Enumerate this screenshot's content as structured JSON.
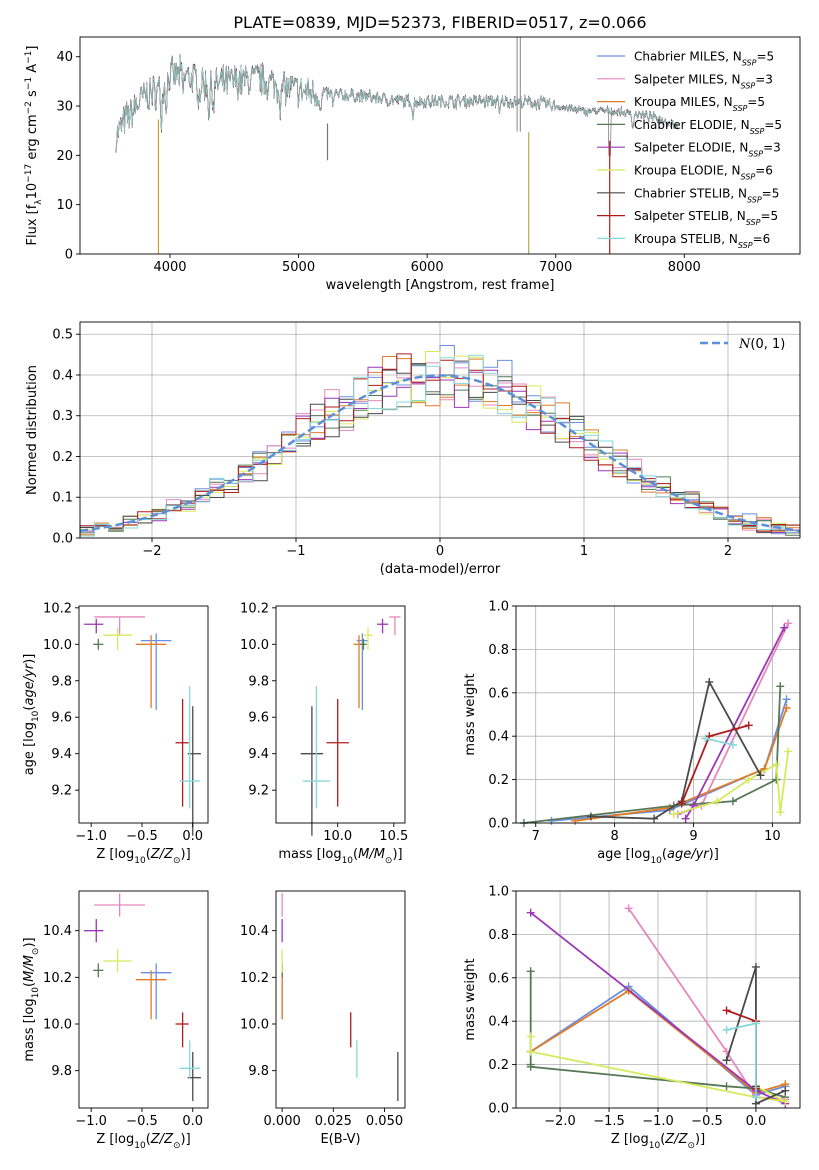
{
  "figure": {
    "title": "PLATE=0839, MJD=52373, FIBERID=0517, z=0.066"
  },
  "colors": {
    "Chabrier MILES": "#6a8fe0",
    "Salpeter MILES": "#e589bd",
    "Kroupa MILES": "#e07c28",
    "Chabrier ELODIE": "#567856",
    "Salpeter ELODIE": "#9c37b6",
    "Kroupa ELODIE": "#d6ea5e",
    "Chabrier STELIB": "#4a4a4a",
    "Salpeter STELIB": "#b01c1c",
    "Kroupa STELIB": "#86d8da",
    "gauss": "#5b8fd8",
    "grid": "#b0b0b0"
  },
  "chart_data": [
    {
      "id": "spectrum",
      "type": "line",
      "xlabel": "wavelength [Angstrom, rest frame]",
      "ylabel": "Flux [f_λ 10^-17 erg cm^-2 s^-1 A^-1]",
      "xlim": [
        3300,
        8900
      ],
      "ylim": [
        0,
        44
      ],
      "xticks": [
        4000,
        5000,
        6000,
        7000,
        8000
      ],
      "yticks": [
        0,
        10,
        20,
        30,
        40
      ],
      "grid": false,
      "legend_position": "right",
      "legend": [
        {
          "name": "Chabrier MILES",
          "label": "Chabrier MILES, N",
          "n": "5"
        },
        {
          "name": "Salpeter MILES",
          "label": "Salpeter MILES, N",
          "n": "3"
        },
        {
          "name": "Kroupa MILES",
          "label": "Kroupa MILES, N",
          "n": "5"
        },
        {
          "name": "Chabrier ELODIE",
          "label": "Chabrier ELODIE, N",
          "n": "5"
        },
        {
          "name": "Salpeter ELODIE",
          "label": "Salpeter ELODIE, N",
          "n": "3"
        },
        {
          "name": "Kroupa ELODIE",
          "label": "Kroupa ELODIE, N",
          "n": "6"
        },
        {
          "name": "Chabrier STELIB",
          "label": "Chabrier STELIB, N",
          "n": "5"
        },
        {
          "name": "Salpeter STELIB",
          "label": "Salpeter STELIB, N",
          "n": "5"
        },
        {
          "name": "Kroupa STELIB",
          "label": "Kroupa STELIB, N",
          "n": "6"
        }
      ],
      "nsub": "SSP",
      "continuum": {
        "x": [
          3580,
          3650,
          3800,
          3900,
          4000,
          4100,
          4300,
          4500,
          4700,
          4850,
          5000,
          5200,
          5500,
          5800,
          6100,
          6400,
          6600,
          6900,
          7200,
          7400,
          7600,
          7800,
          7950
        ],
        "y": [
          24,
          27,
          32,
          33,
          36,
          36.5,
          34,
          35,
          35.5,
          34,
          33,
          32.5,
          32,
          31,
          31,
          31,
          31,
          30.5,
          29,
          29,
          28.5,
          27.5,
          26
        ]
      },
      "spikes": [
        {
          "x": 3910,
          "y": 0
        },
        {
          "x": 5225,
          "y": 19
        },
        {
          "x": 6790,
          "y": 0
        },
        {
          "x": 7420,
          "y": 0
        },
        {
          "x": 6700,
          "y": 44
        },
        {
          "x": 6725,
          "y": 44
        }
      ]
    },
    {
      "id": "residuals",
      "type": "histogram",
      "xlabel": "(data-model)/error",
      "ylabel": "Normed distribution",
      "xlim": [
        -2.5,
        2.5
      ],
      "ylim": [
        0,
        0.53
      ],
      "xticks": [
        -2,
        -1,
        0,
        1,
        2
      ],
      "yticks": [
        0.0,
        0.1,
        0.2,
        0.3,
        0.4,
        0.5
      ],
      "grid": true,
      "legend_position": "top-right",
      "legend_label": "N(0,1)",
      "bin_width": 0.1
    },
    {
      "id": "age-vs-Z",
      "type": "errorbar",
      "xlabel": "Z [log10(Z/Z_sun)]",
      "ylabel": "age [log10(age/yr)]",
      "xlim": [
        -1.12,
        0.15
      ],
      "ylim": [
        9.02,
        10.21
      ],
      "xticks": [
        -1.0,
        -0.5,
        0.0
      ],
      "yticks": [
        9.2,
        9.4,
        9.6,
        9.8,
        10.0,
        10.2
      ],
      "points": [
        {
          "model": "Chabrier MILES",
          "x": -0.36,
          "xerr": [
            0.15,
            0.15
          ],
          "y": 10.02,
          "yerr": [
            0.38,
            0.04
          ]
        },
        {
          "model": "Salpeter MILES",
          "x": -0.72,
          "xerr": [
            0.25,
            0.25
          ],
          "y": 10.15,
          "yerr": [
            0.1,
            0.0
          ]
        },
        {
          "model": "Kroupa MILES",
          "x": -0.41,
          "xerr": [
            0.15,
            0.15
          ],
          "y": 10.0,
          "yerr": [
            0.35,
            0.05
          ]
        },
        {
          "model": "Chabrier ELODIE",
          "x": -0.93,
          "xerr": [
            0.05,
            0.05
          ],
          "y": 10.0,
          "yerr": [
            0.03,
            0.03
          ]
        },
        {
          "model": "Salpeter ELODIE",
          "x": -0.95,
          "xerr": [
            0.12,
            0.07
          ],
          "y": 10.11,
          "yerr": [
            0.05,
            0.03
          ]
        },
        {
          "model": "Kroupa ELODIE",
          "x": -0.74,
          "xerr": [
            0.14,
            0.14
          ],
          "y": 10.05,
          "yerr": [
            0.08,
            0.04
          ]
        },
        {
          "model": "Chabrier STELIB",
          "x": 0.0,
          "xerr": [
            0.05,
            0.08
          ],
          "y": 9.4,
          "yerr": [
            0.45,
            0.26
          ]
        },
        {
          "model": "Salpeter STELIB",
          "x": -0.1,
          "xerr": [
            0.07,
            0.06
          ],
          "y": 9.46,
          "yerr": [
            0.35,
            0.24
          ]
        },
        {
          "model": "Kroupa STELIB",
          "x": -0.03,
          "xerr": [
            0.1,
            0.1
          ],
          "y": 9.25,
          "yerr": [
            0.15,
            0.52
          ]
        }
      ]
    },
    {
      "id": "age-vs-mass",
      "type": "errorbar",
      "xlabel": "mass [log10(M/M_sun)]",
      "ylabel": "",
      "xlim": [
        9.45,
        10.6
      ],
      "ylim": [
        9.02,
        10.21
      ],
      "xticks": [
        10.0,
        10.5
      ],
      "yticks": [
        9.2,
        9.4,
        9.6,
        9.8,
        10.0,
        10.2
      ],
      "points": [
        {
          "model": "Chabrier MILES",
          "x": 10.22,
          "xerr": [
            0.05,
            0.05
          ],
          "y": 10.02,
          "yerr": [
            0.38,
            0.04
          ]
        },
        {
          "model": "Salpeter MILES",
          "x": 10.51,
          "xerr": [
            0.05,
            0.05
          ],
          "y": 10.15,
          "yerr": [
            0.1,
            0.0
          ]
        },
        {
          "model": "Kroupa MILES",
          "x": 10.19,
          "xerr": [
            0.05,
            0.05
          ],
          "y": 10.0,
          "yerr": [
            0.35,
            0.05
          ]
        },
        {
          "model": "Chabrier ELODIE",
          "x": 10.23,
          "xerr": [
            0.03,
            0.03
          ],
          "y": 10.0,
          "yerr": [
            0.03,
            0.03
          ]
        },
        {
          "model": "Salpeter ELODIE",
          "x": 10.4,
          "xerr": [
            0.05,
            0.05
          ],
          "y": 10.11,
          "yerr": [
            0.05,
            0.03
          ]
        },
        {
          "model": "Kroupa ELODIE",
          "x": 10.27,
          "xerr": [
            0.04,
            0.04
          ],
          "y": 10.05,
          "yerr": [
            0.08,
            0.04
          ]
        },
        {
          "model": "Chabrier STELIB",
          "x": 9.77,
          "xerr": [
            0.1,
            0.1
          ],
          "y": 9.4,
          "yerr": [
            0.45,
            0.26
          ]
        },
        {
          "model": "Salpeter STELIB",
          "x": 10.0,
          "xerr": [
            0.1,
            0.1
          ],
          "y": 9.46,
          "yerr": [
            0.35,
            0.24
          ]
        },
        {
          "model": "Kroupa STELIB",
          "x": 9.81,
          "xerr": [
            0.12,
            0.12
          ],
          "y": 9.25,
          "yerr": [
            0.15,
            0.52
          ]
        }
      ]
    },
    {
      "id": "weight-vs-age",
      "type": "line",
      "xlabel": "age [log10(age/yr)]",
      "ylabel": "mass weight",
      "xlim": [
        6.75,
        10.35
      ],
      "ylim": [
        0,
        1.0
      ],
      "xticks": [
        7,
        8,
        9,
        10
      ],
      "yticks": [
        0.0,
        0.2,
        0.4,
        0.6,
        0.8,
        1.0
      ],
      "grid": true,
      "series": [
        {
          "model": "Chabrier MILES",
          "x": [
            7.2,
            8.7,
            9.9,
            10.18
          ],
          "y": [
            0.01,
            0.06,
            0.25,
            0.57
          ]
        },
        {
          "model": "Salpeter MILES",
          "x": [
            8.8,
            9.1,
            10.2
          ],
          "y": [
            0.04,
            0.08,
            0.92
          ]
        },
        {
          "model": "Kroupa MILES",
          "x": [
            7.5,
            8.7,
            9.9,
            10.18
          ],
          "y": [
            0.01,
            0.07,
            0.25,
            0.53
          ]
        },
        {
          "model": "Chabrier ELODIE",
          "x": [
            6.85,
            8.75,
            9.5,
            10.05,
            10.1
          ],
          "y": [
            0.0,
            0.08,
            0.1,
            0.2,
            0.63
          ]
        },
        {
          "model": "Salpeter ELODIE",
          "x": [
            8.9,
            9.0,
            10.15
          ],
          "y": [
            0.02,
            0.08,
            0.9
          ]
        },
        {
          "model": "Kroupa ELODIE",
          "x": [
            8.75,
            9.3,
            9.7,
            10.05,
            10.1,
            10.2
          ],
          "y": [
            0.04,
            0.1,
            0.2,
            0.27,
            0.05,
            0.33
          ]
        },
        {
          "model": "Chabrier STELIB",
          "x": [
            7.7,
            8.5,
            8.85,
            9.2,
            9.85
          ],
          "y": [
            0.03,
            0.02,
            0.1,
            0.65,
            0.22
          ]
        },
        {
          "model": "Salpeter STELIB",
          "x": [
            8.85,
            9.2,
            9.7
          ],
          "y": [
            0.09,
            0.4,
            0.45
          ]
        },
        {
          "model": "Kroupa STELIB",
          "x": [
            9.15,
            9.5
          ],
          "y": [
            0.39,
            0.36
          ]
        }
      ]
    },
    {
      "id": "mass-vs-Z",
      "type": "errorbar",
      "xlabel": "Z [log10(Z/Z_sun)]",
      "ylabel": "mass [log10(M/M_sun)]",
      "xlim": [
        -1.12,
        0.15
      ],
      "ylim": [
        9.64,
        10.57
      ],
      "xticks": [
        -1.0,
        -0.5,
        0.0
      ],
      "yticks": [
        9.8,
        10.0,
        10.2,
        10.4
      ],
      "points": [
        {
          "model": "Chabrier MILES",
          "x": -0.36,
          "xerr": [
            0.15,
            0.15
          ],
          "y": 10.22,
          "yerr": [
            0.2,
            0.04
          ]
        },
        {
          "model": "Salpeter MILES",
          "x": -0.72,
          "xerr": [
            0.25,
            0.25
          ],
          "y": 10.51,
          "yerr": [
            0.05,
            0.05
          ]
        },
        {
          "model": "Kroupa MILES",
          "x": -0.41,
          "xerr": [
            0.15,
            0.15
          ],
          "y": 10.19,
          "yerr": [
            0.17,
            0.04
          ]
        },
        {
          "model": "Chabrier ELODIE",
          "x": -0.93,
          "xerr": [
            0.05,
            0.05
          ],
          "y": 10.23,
          "yerr": [
            0.03,
            0.03
          ]
        },
        {
          "model": "Salpeter ELODIE",
          "x": -0.95,
          "xerr": [
            0.12,
            0.07
          ],
          "y": 10.4,
          "yerr": [
            0.05,
            0.05
          ]
        },
        {
          "model": "Kroupa ELODIE",
          "x": -0.74,
          "xerr": [
            0.14,
            0.14
          ],
          "y": 10.27,
          "yerr": [
            0.05,
            0.05
          ]
        },
        {
          "model": "Chabrier STELIB",
          "x": 0.0,
          "xerr": [
            0.05,
            0.08
          ],
          "y": 9.77,
          "yerr": [
            0.1,
            0.11
          ]
        },
        {
          "model": "Salpeter STELIB",
          "x": -0.1,
          "xerr": [
            0.07,
            0.06
          ],
          "y": 10.0,
          "yerr": [
            0.1,
            0.05
          ]
        },
        {
          "model": "Kroupa STELIB",
          "x": -0.03,
          "xerr": [
            0.1,
            0.1
          ],
          "y": 9.81,
          "yerr": [
            0.04,
            0.12
          ]
        }
      ]
    },
    {
      "id": "mass-vs-EBV",
      "type": "errorbar",
      "xlabel": "E(B-V)",
      "ylabel": "",
      "xlim": [
        -0.003,
        0.06
      ],
      "ylim": [
        9.64,
        10.57
      ],
      "xticks": [
        0.0,
        0.025,
        0.05
      ],
      "yticks": [
        9.8,
        10.0,
        10.2,
        10.4
      ],
      "points": [
        {
          "model": "Chabrier MILES",
          "x": 0.0,
          "y": 10.22,
          "yerr": [
            0.2,
            0.04
          ]
        },
        {
          "model": "Salpeter MILES",
          "x": 0.0,
          "y": 10.51,
          "yerr": [
            0.05,
            0.05
          ]
        },
        {
          "model": "Kroupa MILES",
          "x": 0.0,
          "y": 10.19,
          "yerr": [
            0.17,
            0.04
          ]
        },
        {
          "model": "Chabrier ELODIE",
          "x": 0.0,
          "y": 10.23,
          "yerr": [
            0.03,
            0.03
          ]
        },
        {
          "model": "Salpeter ELODIE",
          "x": 0.0,
          "y": 10.4,
          "yerr": [
            0.05,
            0.05
          ]
        },
        {
          "model": "Kroupa ELODIE",
          "x": 0.0,
          "y": 10.27,
          "yerr": [
            0.05,
            0.05
          ]
        },
        {
          "model": "Chabrier STELIB",
          "x": 0.0565,
          "y": 9.77,
          "yerr": [
            0.1,
            0.11
          ]
        },
        {
          "model": "Salpeter STELIB",
          "x": 0.0335,
          "y": 10.0,
          "yerr": [
            0.1,
            0.05
          ]
        },
        {
          "model": "Kroupa STELIB",
          "x": 0.0365,
          "y": 9.81,
          "yerr": [
            0.04,
            0.12
          ]
        }
      ]
    },
    {
      "id": "weight-vs-Z",
      "type": "line",
      "xlabel": "Z [log10(Z/Z_sun)]",
      "ylabel": "mass weight",
      "xlim": [
        -2.45,
        0.45
      ],
      "ylim": [
        0,
        1.0
      ],
      "xticks": [
        -2.0,
        -1.5,
        -1.0,
        -0.5,
        0.0
      ],
      "yticks": [
        0.0,
        0.2,
        0.4,
        0.6,
        0.8,
        1.0
      ],
      "grid": true,
      "series": [
        {
          "model": "Chabrier MILES",
          "x": [
            -2.3,
            -1.3,
            0.0,
            0.3
          ],
          "y": [
            0.26,
            0.56,
            0.06,
            0.1
          ]
        },
        {
          "model": "Salpeter MILES",
          "x": [
            -1.3,
            -0.3,
            0.0,
            0.3
          ],
          "y": [
            0.92,
            0.26,
            0.05,
            0.04
          ]
        },
        {
          "model": "Kroupa MILES",
          "x": [
            -2.3,
            -1.3,
            0.0,
            0.3
          ],
          "y": [
            0.26,
            0.54,
            0.07,
            0.11
          ]
        },
        {
          "model": "Chabrier ELODIE",
          "x": [
            -2.3,
            -2.3,
            -2.3,
            -0.3,
            0.0,
            0.3
          ],
          "y": [
            0.63,
            0.2,
            0.19,
            0.1,
            0.09,
            0.05
          ]
        },
        {
          "model": "Salpeter ELODIE",
          "x": [
            -2.3,
            0.0,
            0.3
          ],
          "y": [
            0.9,
            0.08,
            0.02
          ]
        },
        {
          "model": "Kroupa ELODIE",
          "x": [
            -2.3,
            -2.3,
            0.0,
            0.3,
            0.0
          ],
          "y": [
            0.33,
            0.26,
            0.05,
            0.03,
            0.1
          ]
        },
        {
          "model": "Chabrier STELIB",
          "x": [
            -0.3,
            0.0,
            0.0,
            0.0,
            0.3
          ],
          "y": [
            0.22,
            0.65,
            0.1,
            0.02,
            0.08
          ]
        },
        {
          "model": "Salpeter STELIB",
          "x": [
            -0.3,
            0.0,
            0.0
          ],
          "y": [
            0.45,
            0.4,
            0.09
          ]
        },
        {
          "model": "Kroupa STELIB",
          "x": [
            -0.3,
            0.0,
            0.0
          ],
          "y": [
            0.36,
            0.39,
            0.05
          ]
        }
      ]
    }
  ]
}
